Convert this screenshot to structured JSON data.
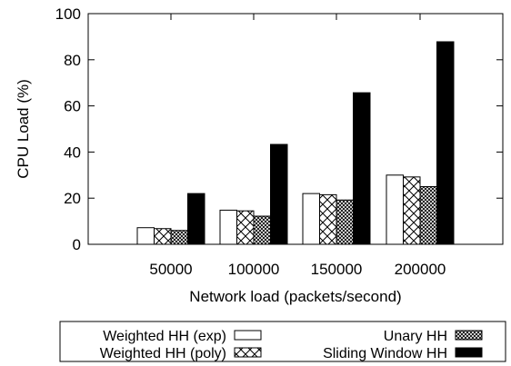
{
  "chart_data": {
    "type": "bar",
    "title": "",
    "xlabel": "Network load (packets/second)",
    "ylabel": "CPU Load (%)",
    "ylim": [
      0,
      100
    ],
    "yticks": [
      0,
      20,
      40,
      60,
      80,
      100
    ],
    "categories": [
      "50000",
      "100000",
      "150000",
      "200000"
    ],
    "series": [
      {
        "name": "Weighted HH (exp)",
        "pattern": "empty",
        "values": [
          7.2,
          14.8,
          22.0,
          30.0
        ]
      },
      {
        "name": "Weighted HH (poly)",
        "pattern": "crosshatch",
        "values": [
          6.8,
          14.5,
          21.5,
          29.2
        ]
      },
      {
        "name": "Unary HH",
        "pattern": "dense-crosshatch",
        "values": [
          6.0,
          12.2,
          19.2,
          25.0
        ]
      },
      {
        "name": "Sliding Window HH",
        "pattern": "solid",
        "values": [
          22.0,
          43.3,
          65.7,
          87.8
        ]
      }
    ],
    "grid": false,
    "legend_position": "bottom",
    "colors": {
      "bar_stroke": "#000000",
      "solid_fill": "#000000",
      "empty_fill": "#ffffff"
    }
  }
}
